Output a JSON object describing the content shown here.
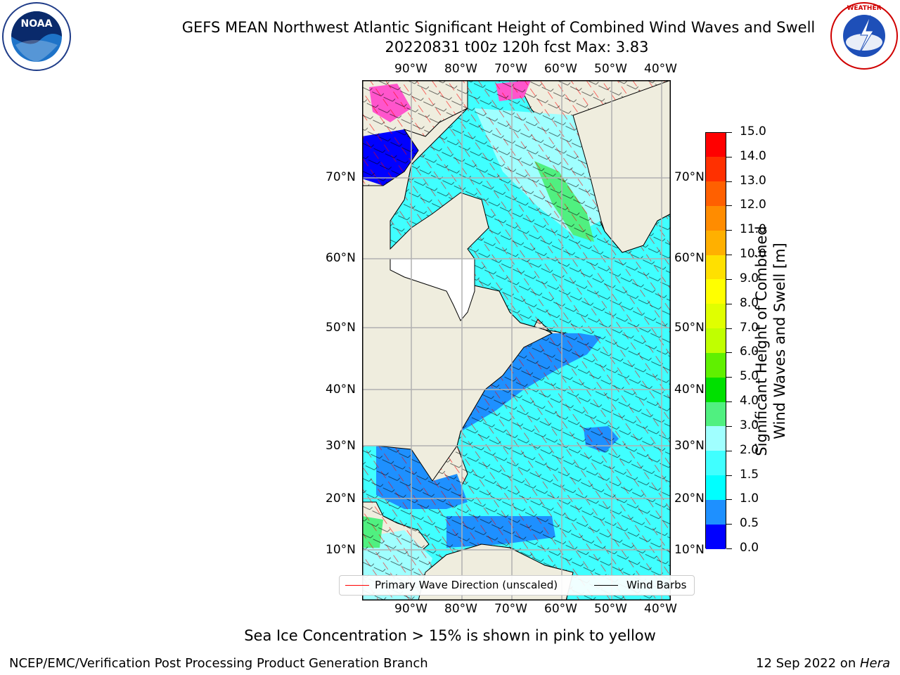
{
  "header": {
    "title_line1": "GEFS MEAN Northwest Atlantic Significant Height of Combined Wind Waves and Swell",
    "title_line2": "20220831 t00z 120h fcst   Max: 3.83"
  },
  "logos": {
    "noaa_text": "NOAA",
    "noaa_ring_text": "NATIONAL OCEANIC AND ATMOSPHERIC ADMINISTRATION · U.S. DEPARTMENT OF COMMERCE",
    "nws_ring_text": "NATIONAL WEATHER SERVICE"
  },
  "map": {
    "lon_labels": [
      "90°W",
      "80°W",
      "70°W",
      "60°W",
      "50°W",
      "40°W"
    ],
    "lat_labels": [
      "70°N",
      "60°N",
      "50°N",
      "40°N",
      "30°N",
      "20°N",
      "10°N"
    ],
    "land_color": "#efedde",
    "grid_color": "#b0b0b0"
  },
  "legend": {
    "wave_dir_label": "Primary Wave Direction (unscaled)",
    "wave_dir_color": "#ff0000",
    "wind_barbs_label": "Wind Barbs",
    "wind_barbs_color": "#000000"
  },
  "colorbar": {
    "label_line1": "Significant Height of Combined",
    "label_line2": "Wind Waves and Swell [m]",
    "levels": [
      "0.0",
      "0.5",
      "1.0",
      "1.5",
      "2.0",
      "3.0",
      "4.0",
      "5.0",
      "6.0",
      "7.0",
      "8.0",
      "9.0",
      "10.0",
      "11.0",
      "12.0",
      "13.0",
      "14.0",
      "15.0"
    ],
    "colors": [
      "#0000ff",
      "#1e90ff",
      "#00ffff",
      "#40ffff",
      "#a0ffff",
      "#50f080",
      "#00e000",
      "#60f000",
      "#c0ff00",
      "#e0ff00",
      "#ffff00",
      "#ffe000",
      "#ffb000",
      "#ff8c00",
      "#ff6000",
      "#ff3000",
      "#ff0000"
    ]
  },
  "notes": {
    "sea_ice": "Sea Ice Concentration > 15% is shown in pink to yellow"
  },
  "footer": {
    "left": "NCEP/EMC/Verification Post Processing Product Generation Branch",
    "date": "12 Sep 2022 on ",
    "machine": "Hera"
  }
}
